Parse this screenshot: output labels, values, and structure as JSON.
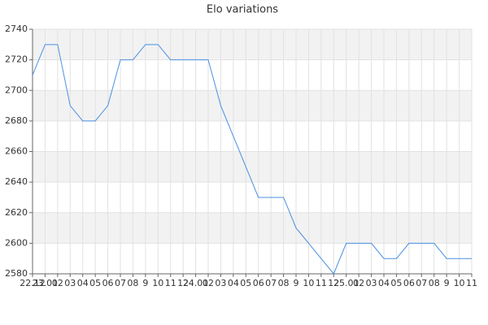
{
  "chart_data": {
    "type": "line",
    "title": "Elo variations",
    "categories": [
      "22.12",
      "23.01",
      "02",
      "03",
      "04",
      "05",
      "06",
      "07",
      "08",
      "9",
      "10",
      "11",
      "12",
      "24.01",
      "02",
      "03",
      "04",
      "05",
      "06",
      "07",
      "08",
      "9",
      "10",
      "11",
      "12",
      "25.01",
      "02",
      "03",
      "04",
      "05",
      "06",
      "07",
      "08",
      "9",
      "10",
      "11"
    ],
    "values": [
      2710,
      2730,
      2730,
      2690,
      2680,
      2680,
      2690,
      2720,
      2720,
      2730,
      2730,
      2720,
      2720,
      2720,
      2720,
      2690,
      2670,
      2650,
      2630,
      2630,
      2630,
      2610,
      2600,
      2590,
      2580,
      2600,
      2600,
      2600,
      2590,
      2590,
      2600,
      2600,
      2600,
      2590,
      2590,
      2590
    ],
    "color": "#4a90e2",
    "ylim": [
      2580,
      2740
    ],
    "yticks": [
      2580,
      2600,
      2620,
      2640,
      2660,
      2680,
      2700,
      2720,
      2740
    ],
    "grid": true,
    "band_color": "#f2f2f2"
  }
}
